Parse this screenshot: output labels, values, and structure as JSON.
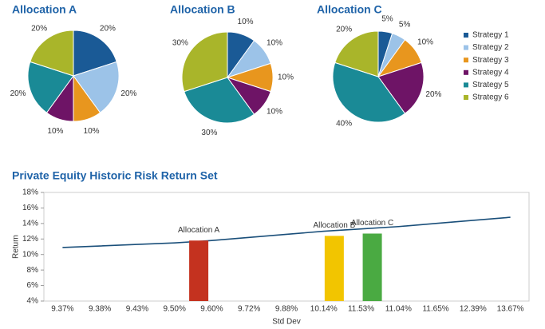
{
  "chart_data": [
    {
      "type": "pie",
      "categories": [
        "Strategy 1",
        "Strategy 2",
        "Strategy 3",
        "Strategy 4",
        "Strategy 5",
        "Strategy 6"
      ],
      "colors": [
        "#1a5a96",
        "#9cc3e8",
        "#e8961e",
        "#6e1466",
        "#1a8a96",
        "#a9b52a"
      ],
      "legend": "right",
      "series": [
        {
          "name": "Allocation A",
          "values": [
            20,
            20,
            10,
            10,
            20,
            20
          ],
          "value_labels": [
            "20%",
            "20%",
            "10%",
            "10%",
            "20%",
            "20%"
          ]
        },
        {
          "name": "Allocation B",
          "values": [
            10,
            10,
            10,
            10,
            30,
            30
          ],
          "value_labels": [
            "10%",
            "10%",
            "10%",
            "10%",
            "30%",
            "30%"
          ]
        },
        {
          "name": "Allocation C",
          "values": [
            5,
            5,
            10,
            20,
            40,
            20
          ],
          "value_labels": [
            "5%",
            "5%",
            "10%",
            "20%",
            "40%",
            "20%"
          ]
        }
      ]
    },
    {
      "type": "combo",
      "title": "Private Equity Historic Risk Return Set",
      "x_label": "Std Dev",
      "y_label": "Return",
      "categories": [
        "9.37%",
        "9.38%",
        "9.43%",
        "9.50%",
        "9.60%",
        "9.72%",
        "9.88%",
        "10.14%",
        "11.53%",
        "11.04%",
        "11.65%",
        "12.39%",
        "13.67%"
      ],
      "ylim": [
        4,
        18
      ],
      "yticks": [
        {
          "value": 4,
          "label": "4%"
        },
        {
          "value": 6,
          "label": "6%"
        },
        {
          "value": 8,
          "label": "8%"
        },
        {
          "value": 10,
          "label": "10%"
        },
        {
          "value": 12,
          "label": "12%"
        },
        {
          "value": 14,
          "label": "14%"
        },
        {
          "value": 16,
          "label": "16%"
        },
        {
          "value": 18,
          "label": "18%"
        }
      ],
      "grid": false,
      "series": [
        {
          "type": "line",
          "color": "#1a4f7a",
          "values": [
            10.9,
            11.1,
            11.3,
            11.5,
            11.8,
            12.2,
            12.6,
            13.0,
            13.3,
            13.6,
            14.0,
            14.4,
            14.8
          ]
        },
        {
          "type": "bar",
          "name": "Allocation A",
          "color": "#c4321f",
          "value": 11.8
        },
        {
          "type": "bar",
          "name": "Allocation B",
          "color": "#f2c500",
          "value": 12.4
        },
        {
          "type": "bar",
          "name": "Allocation C",
          "color": "#4aaa42",
          "value": 12.7
        }
      ]
    }
  ]
}
